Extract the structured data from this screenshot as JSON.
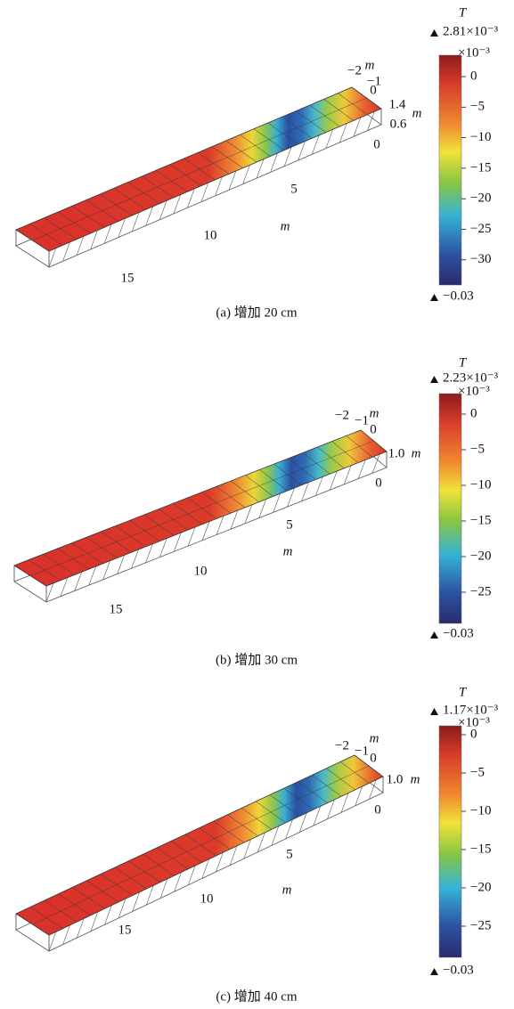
{
  "panels": [
    {
      "caption": "(a) 增加 20 cm",
      "colorbar": {
        "title": "T",
        "max_label": "2.81×10⁻³",
        "multiplier": "×10⁻³",
        "ticks": [
          "0",
          "−5",
          "−10",
          "−15",
          "−20",
          "−25",
          "−30"
        ],
        "min_label": "−0.03"
      },
      "axis_labels": [
        "−2",
        "−1",
        "m",
        "0",
        "1.4",
        "m",
        "0.6",
        "0",
        "5",
        "m",
        "10",
        "15"
      ]
    },
    {
      "caption": "(b) 增加 30 cm",
      "colorbar": {
        "title": "T",
        "max_label": "2.23×10⁻³",
        "multiplier": "×10⁻³",
        "ticks": [
          "0",
          "−5",
          "−10",
          "−15",
          "−20",
          "−25"
        ],
        "min_label": "−0.03"
      },
      "axis_labels": [
        "−2",
        "−1",
        "m",
        "0",
        "1.0",
        "m",
        "0",
        "5",
        "m",
        "10",
        "15"
      ]
    },
    {
      "caption": "(c) 增加 40 cm",
      "colorbar": {
        "title": "T",
        "max_label": "1.17×10⁻³",
        "multiplier": "×10⁻³",
        "ticks": [
          "0",
          "−5",
          "−10",
          "−15",
          "−20",
          "−25"
        ],
        "min_label": "−0.03"
      },
      "axis_labels": [
        "−2",
        "−1",
        "m",
        "0",
        "1.0",
        "m",
        "0",
        "5",
        "m",
        "10",
        "15"
      ]
    }
  ]
}
